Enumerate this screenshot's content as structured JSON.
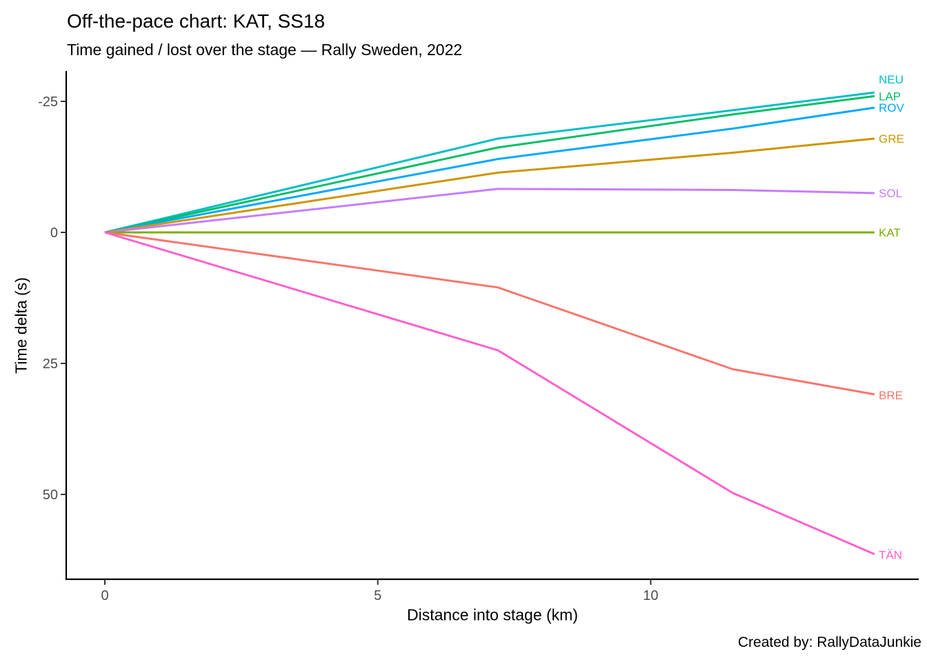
{
  "chart_data": {
    "type": "line",
    "title": "Off-the-pace chart: KAT, SS18",
    "subtitle": "Time gained / lost over the stage — Rally Sweden, 2022",
    "caption": "Created by: RallyDataJunkie",
    "xlabel": "Distance into stage (km)",
    "ylabel": "Time delta (s)",
    "x_ticks": [
      0,
      5,
      10
    ],
    "y_ticks": [
      -25,
      0,
      25,
      50
    ],
    "xlim": [
      -0.7,
      14.9
    ],
    "ylim": [
      -30.8,
      66.2
    ],
    "y_axis_reversed": true,
    "grid": false,
    "legend_position": "line-end labels",
    "reference_driver": "KAT",
    "x": [
      0,
      7.2,
      11.5,
      14.1
    ],
    "series": [
      {
        "name": "NEU",
        "color": "#00BFC4",
        "values": [
          0,
          -17.9,
          -23.3,
          -26.7
        ],
        "label_dy": -19
      },
      {
        "name": "LAP",
        "color": "#00BE67",
        "values": [
          0,
          -16.2,
          -22.5,
          -26.0
        ],
        "label_dy": 0
      },
      {
        "name": "ROV",
        "color": "#00A9FF",
        "values": [
          0,
          -14.0,
          -19.8,
          -23.8
        ],
        "label_dy": 0
      },
      {
        "name": "GRE",
        "color": "#CD9600",
        "values": [
          0,
          -11.4,
          -15.2,
          -17.9
        ],
        "label_dy": 0
      },
      {
        "name": "SOL",
        "color": "#C77CFF",
        "values": [
          0,
          -8.3,
          -8.1,
          -7.5
        ],
        "label_dy": 0
      },
      {
        "name": "KAT",
        "color": "#7CAE00",
        "values": [
          0,
          0,
          0,
          0
        ],
        "label_dy": 0
      },
      {
        "name": "BRE",
        "color": "#F8766D",
        "values": [
          0,
          10.5,
          26.1,
          30.9
        ],
        "label_dy": 1
      },
      {
        "name": "TÄN",
        "color": "#FF61CC",
        "values": [
          0,
          22.5,
          49.7,
          61.4
        ],
        "label_dy": 1
      }
    ],
    "colors": {
      "axis_line": "#000000",
      "tick_mark": "#333333",
      "tick_label": "#4d4d4d"
    }
  }
}
